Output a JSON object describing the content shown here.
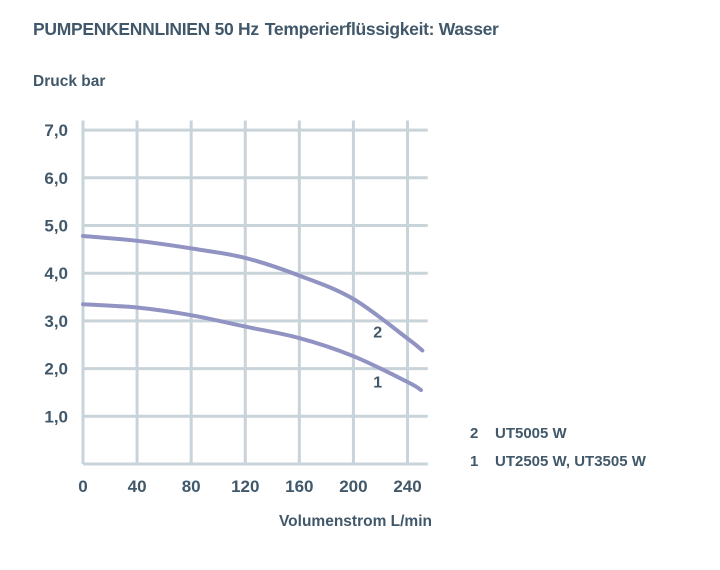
{
  "header": {
    "title_primary": "PUMPENKENNLINIEN 50 Hz",
    "title_secondary": "Temperierflüssigkeit: Wasser"
  },
  "colors": {
    "text": "#41586a",
    "grid": "#c9d3da",
    "curve": "#9193c2",
    "background": "#ffffff"
  },
  "chart_data": {
    "type": "line",
    "title": "PUMPENKENNLINIEN 50 Hz Temperierflüssigkeit: Wasser",
    "xlabel": "Volumenstrom L/min",
    "ylabel": "Druck bar",
    "xlim": [
      0,
      255
    ],
    "ylim": [
      0,
      7.2
    ],
    "grid": true,
    "legend_position": "right-bottom",
    "x_ticks": [
      {
        "value": 0,
        "label": "0"
      },
      {
        "value": 40,
        "label": "40"
      },
      {
        "value": 80,
        "label": "80"
      },
      {
        "value": 120,
        "label": "120"
      },
      {
        "value": 160,
        "label": "160"
      },
      {
        "value": 200,
        "label": "200"
      },
      {
        "value": 240,
        "label": "240"
      }
    ],
    "y_ticks": [
      {
        "value": 1,
        "label": "1,0"
      },
      {
        "value": 2,
        "label": "2,0"
      },
      {
        "value": 3,
        "label": "3,0"
      },
      {
        "value": 4,
        "label": "4,0"
      },
      {
        "value": 5,
        "label": "5,0"
      },
      {
        "value": 6,
        "label": "6,0"
      },
      {
        "value": 7,
        "label": "7,0"
      }
    ],
    "series": [
      {
        "curve_number": "2",
        "name": "UT5005 W",
        "x": [
          0,
          40,
          80,
          120,
          160,
          200,
          240,
          251
        ],
        "y": [
          4.78,
          4.68,
          4.52,
          4.32,
          3.95,
          3.46,
          2.63,
          2.38
        ],
        "label_pos": {
          "x": 218,
          "y": 2.75
        }
      },
      {
        "curve_number": "1",
        "name": "UT2505 W, UT3505 W",
        "x": [
          0,
          40,
          80,
          120,
          160,
          200,
          240,
          250
        ],
        "y": [
          3.35,
          3.28,
          3.12,
          2.88,
          2.64,
          2.26,
          1.72,
          1.55
        ],
        "label_pos": {
          "x": 218,
          "y": 1.7
        }
      }
    ]
  }
}
